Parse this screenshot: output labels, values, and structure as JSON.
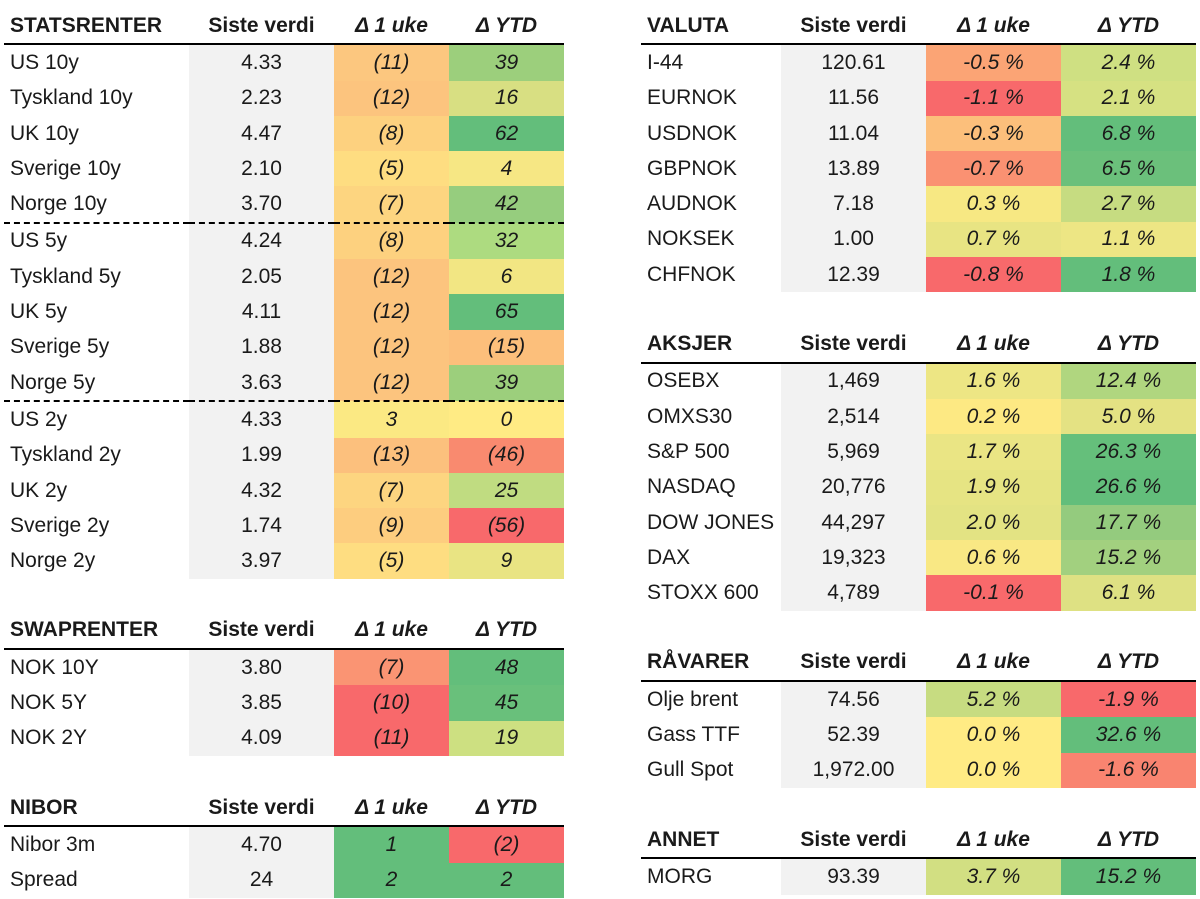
{
  "headers": {
    "value": "Siste verdi",
    "week": "Δ 1 uke",
    "ytd": "Δ YTD"
  },
  "left_sections": [
    {
      "title": "STATSRENTER",
      "separators_after": [
        4,
        9
      ],
      "rows": [
        {
          "name": "US 10y",
          "value": "4.33",
          "week": "(11)",
          "week_color": "#fcc77f",
          "ytd": "39",
          "ytd_color": "#9ccf7c"
        },
        {
          "name": "Tyskland 10y",
          "value": "2.23",
          "week": "(12)",
          "week_color": "#fcc47e",
          "ytd": "16",
          "ytd_color": "#d8df82"
        },
        {
          "name": "UK 10y",
          "value": "4.47",
          "week": "(8)",
          "week_color": "#fdd17f",
          "ytd": "62",
          "ytd_color": "#63be7b"
        },
        {
          "name": "Sverige 10y",
          "value": "2.10",
          "week": "(5)",
          "week_color": "#fedd81",
          "ytd": "4",
          "ytd_color": "#f6e784"
        },
        {
          "name": "Norge 10y",
          "value": "3.70",
          "week": "(7)",
          "week_color": "#fdd580",
          "ytd": "42",
          "ytd_color": "#96cd7e"
        },
        {
          "name": "US 5y",
          "value": "4.24",
          "week": "(8)",
          "week_color": "#fdd17f",
          "ytd": "32",
          "ytd_color": "#addb80"
        },
        {
          "name": "Tyskland 5y",
          "value": "2.05",
          "week": "(12)",
          "week_color": "#fcc47e",
          "ytd": "6",
          "ytd_color": "#f2e683"
        },
        {
          "name": "UK 5y",
          "value": "4.11",
          "week": "(12)",
          "week_color": "#fcc47e",
          "ytd": "65",
          "ytd_color": "#63be7b"
        },
        {
          "name": "Sverige 5y",
          "value": "1.88",
          "week": "(12)",
          "week_color": "#fcc47e",
          "ytd": "(15)",
          "ytd_color": "#fcbf7b"
        },
        {
          "name": "Norge 5y",
          "value": "3.63",
          "week": "(12)",
          "week_color": "#fcc47e",
          "ytd": "39",
          "ytd_color": "#9ccf7c"
        },
        {
          "name": "US 2y",
          "value": "4.33",
          "week": "3",
          "week_color": "#fbe983",
          "ytd": "0",
          "ytd_color": "#ffeb84"
        },
        {
          "name": "Tyskland 2y",
          "value": "1.99",
          "week": "(13)",
          "week_color": "#fcc07d",
          "ytd": "(46)",
          "ytd_color": "#f98a6f"
        },
        {
          "name": "UK 2y",
          "value": "4.32",
          "week": "(7)",
          "week_color": "#fdd580",
          "ytd": "25",
          "ytd_color": "#c0dc81"
        },
        {
          "name": "Sverige 2y",
          "value": "1.74",
          "week": "(9)",
          "week_color": "#fdcd7f",
          "ytd": "(56)",
          "ytd_color": "#f8696b"
        },
        {
          "name": "Norge 2y",
          "value": "3.97",
          "week": "(5)",
          "week_color": "#fedd81",
          "ytd": "9",
          "ytd_color": "#e9e483"
        }
      ]
    },
    {
      "title": "SWAPRENTER",
      "separators_after": [],
      "rows": [
        {
          "name": "NOK 10Y",
          "value": "3.80",
          "week": "(7)",
          "week_color": "#fa9473",
          "ytd": "48",
          "ytd_color": "#63be7b"
        },
        {
          "name": "NOK 5Y",
          "value": "3.85",
          "week": "(10)",
          "week_color": "#f8696b",
          "ytd": "45",
          "ytd_color": "#69c07b"
        },
        {
          "name": "NOK 2Y",
          "value": "4.09",
          "week": "(11)",
          "week_color": "#f8696b",
          "ytd": "19",
          "ytd_color": "#cde081"
        }
      ]
    },
    {
      "title": "NIBOR",
      "separators_after": [],
      "rows": [
        {
          "name": "Nibor 3m",
          "value": "4.70",
          "week": "1",
          "week_color": "#63be7b",
          "ytd": "(2)",
          "ytd_color": "#f8696b"
        },
        {
          "name": "Spread",
          "value": "24",
          "week": "2",
          "week_color": "#63be7b",
          "ytd": "2",
          "ytd_color": "#63be7b"
        }
      ]
    }
  ],
  "right_sections": [
    {
      "title": "VALUTA",
      "separators_after": [],
      "rows": [
        {
          "name": "I-44",
          "value": "120.61",
          "week": "-0.5 %",
          "week_color": "#fba475",
          "ytd": "2.4 %",
          "ytd_color": "#cfe082"
        },
        {
          "name": "EURNOK",
          "value": "11.56",
          "week": "-1.1 %",
          "week_color": "#f8696b",
          "ytd": "2.1 %",
          "ytd_color": "#d6e182"
        },
        {
          "name": "USDNOK",
          "value": "11.04",
          "week": "-0.3 %",
          "week_color": "#fcbf7b",
          "ytd": "6.8 %",
          "ytd_color": "#63be7b"
        },
        {
          "name": "GBPNOK",
          "value": "13.89",
          "week": "-0.7 %",
          "week_color": "#fa9172",
          "ytd": "6.5 %",
          "ytd_color": "#6bc07b"
        },
        {
          "name": "AUDNOK",
          "value": "7.18",
          "week": "0.3 %",
          "week_color": "#f7e883",
          "ytd": "2.7 %",
          "ytd_color": "#c6dc81"
        },
        {
          "name": "NOKSEK",
          "value": "1.00",
          "week": "0.7 %",
          "week_color": "#e8e483",
          "ytd": "1.1 %",
          "ytd_color": "#ede684"
        },
        {
          "name": "CHFNOK",
          "value": "12.39",
          "week": "-0.8 %",
          "week_color": "#f8696b",
          "ytd": "1.8 %",
          "ytd_color": "#63be7b"
        }
      ]
    },
    {
      "title": "AKSJER",
      "separators_after": [],
      "rows": [
        {
          "name": "OSEBX",
          "value": "1,469",
          "week": "1.6 %",
          "week_color": "#ede684",
          "ytd": "12.4 %",
          "ytd_color": "#b0d67f"
        },
        {
          "name": "OMXS30",
          "value": "2,514",
          "week": "0.2 %",
          "week_color": "#fde983",
          "ytd": "5.0 %",
          "ytd_color": "#e4e283"
        },
        {
          "name": "S&P 500",
          "value": "5,969",
          "week": "1.7 %",
          "week_color": "#eae584",
          "ytd": "26.3 %",
          "ytd_color": "#65bf7b"
        },
        {
          "name": "NASDAQ",
          "value": "20,776",
          "week": "1.9 %",
          "week_color": "#e6e483",
          "ytd": "26.6 %",
          "ytd_color": "#63be7b"
        },
        {
          "name": "DOW JONES",
          "value": "44,297",
          "week": "2.0 %",
          "week_color": "#e3e383",
          "ytd": "17.7 %",
          "ytd_color": "#94cb7e"
        },
        {
          "name": "DAX",
          "value": "19,323",
          "week": "0.6 %",
          "week_color": "#f9e884",
          "ytd": "15.2 %",
          "ytd_color": "#a2d07f"
        },
        {
          "name": "STOXX 600",
          "value": "4,789",
          "week": "-0.1 %",
          "week_color": "#f8696b",
          "ytd": "6.1 %",
          "ytd_color": "#dee183"
        }
      ]
    },
    {
      "title": "RÅVARER",
      "separators_after": [],
      "rows": [
        {
          "name": "Olje brent",
          "value": "74.56",
          "week": "5.2 %",
          "week_color": "#c7dc81",
          "ytd": "-1.9 %",
          "ytd_color": "#f8696b"
        },
        {
          "name": "Gass TTF",
          "value": "52.39",
          "week": "0.0 %",
          "week_color": "#ffeb84",
          "ytd": "32.6 %",
          "ytd_color": "#63be7b"
        },
        {
          "name": "Gull Spot",
          "value": "1,972.00",
          "week": "0.0 %",
          "week_color": "#ffeb84",
          "ytd": "-1.6 %",
          "ytd_color": "#f98470"
        }
      ]
    },
    {
      "title": "ANNET",
      "separators_after": [],
      "rows": [
        {
          "name": "MORG",
          "value": "93.39",
          "week": "3.7 %",
          "week_color": "#d2df82",
          "ytd": "15.2 %",
          "ytd_color": "#63be7b"
        }
      ]
    }
  ]
}
